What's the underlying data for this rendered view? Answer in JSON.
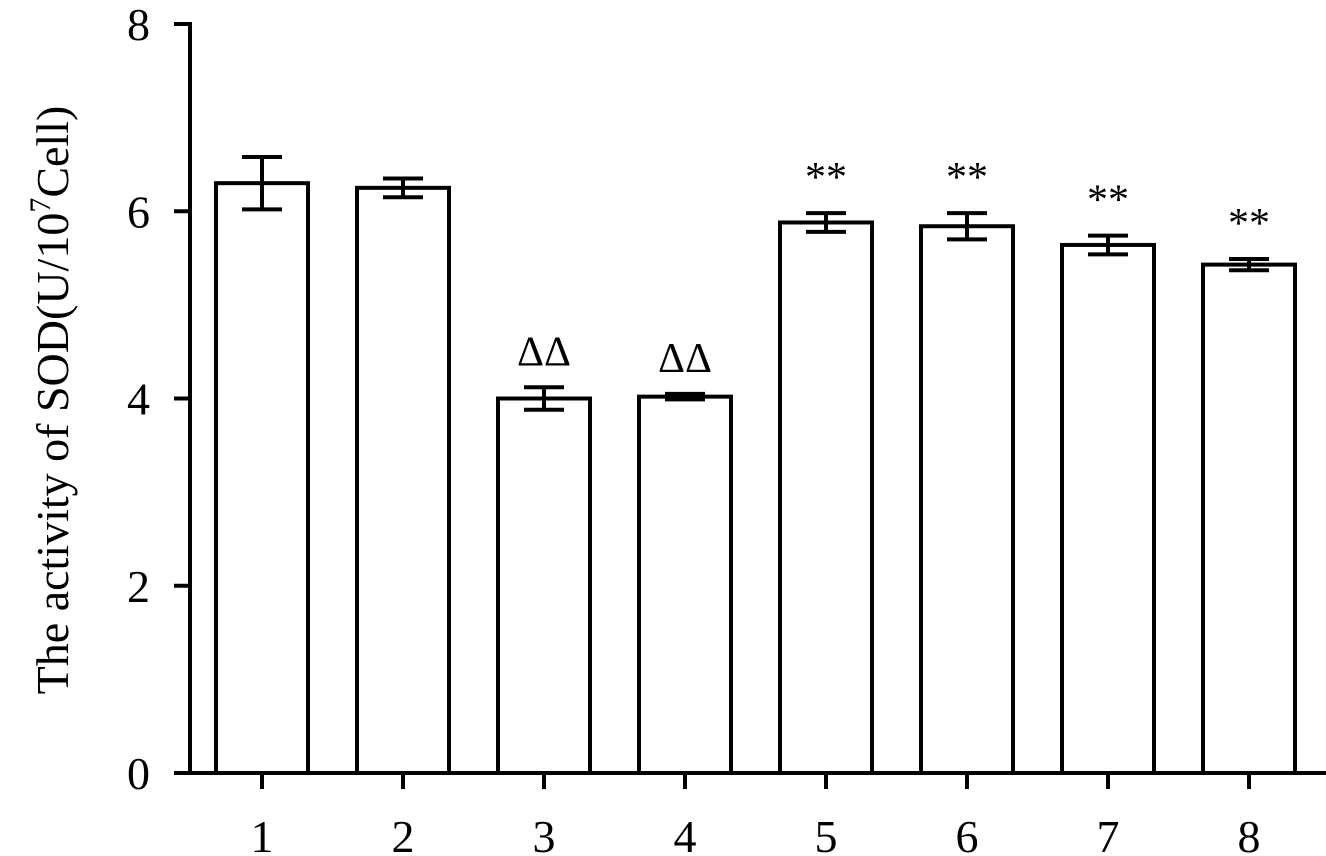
{
  "chart_data": {
    "type": "bar",
    "ylabel": {
      "main": "The activity of SOD(U/10",
      "sup": "7",
      "end": "Cell)"
    },
    "categories": [
      "1",
      "2",
      "3",
      "4",
      "5",
      "6",
      "7",
      "8"
    ],
    "values": [
      6.3,
      6.25,
      4.0,
      4.02,
      5.88,
      5.84,
      5.64,
      5.43
    ],
    "errors": [
      0.28,
      0.1,
      0.12,
      0.03,
      0.1,
      0.14,
      0.1,
      0.06
    ],
    "annotations": [
      null,
      null,
      "ΔΔ",
      "ΔΔ",
      "**",
      "**",
      "**",
      "**"
    ],
    "color": "#ffffff",
    "ylim": [
      0,
      8
    ],
    "yticks": [
      0,
      2,
      4,
      6,
      8
    ],
    "grid": false
  }
}
